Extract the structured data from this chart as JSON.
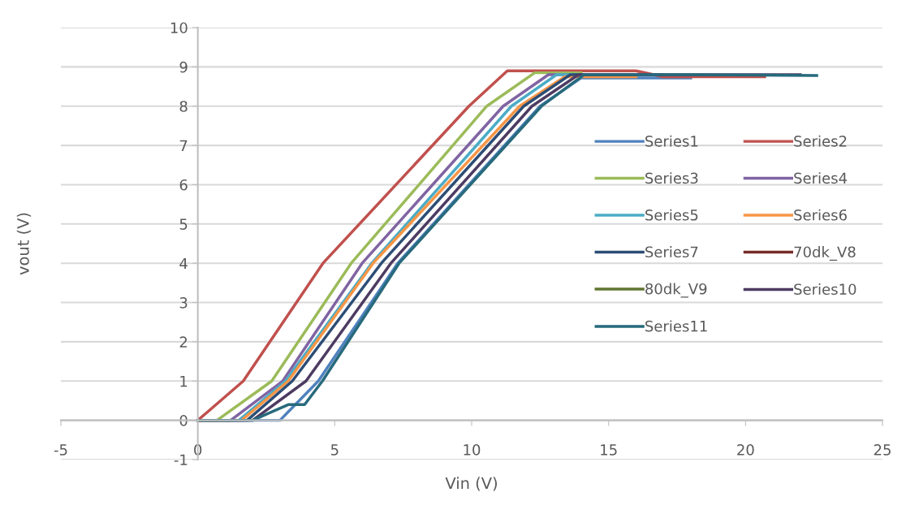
{
  "chart_data": {
    "type": "line",
    "xlabel": "Vin (V)",
    "ylabel": "vout (V)",
    "xlim": [
      -5,
      25
    ],
    "xticks": [
      -5,
      0,
      5,
      10,
      15,
      20,
      25
    ],
    "ylim": [
      -1,
      10
    ],
    "yticks": [
      -1,
      0,
      1,
      2,
      3,
      4,
      5,
      6,
      7,
      8,
      9,
      10
    ],
    "grid": "y",
    "legend": "right",
    "marker": "none",
    "line_style": "solid",
    "series": [
      {
        "name": "Series1",
        "color": "#4f81bd",
        "x": [
          0,
          3.0,
          4.4,
          7.3,
          12.5,
          14.0,
          16,
          18
        ],
        "values": [
          0,
          0,
          1,
          4,
          8,
          8.72,
          8.72,
          8.72
        ]
      },
      {
        "name": "Series2",
        "color": "#c0504d",
        "x": [
          0,
          1.66,
          4.57,
          9.9,
          11.3,
          16,
          17,
          20.7
        ],
        "values": [
          0,
          1,
          4,
          8,
          8.9,
          8.9,
          8.75,
          8.75
        ]
      },
      {
        "name": "Series3",
        "color": "#9bbb59",
        "x": [
          0,
          0.7,
          2.7,
          5.6,
          10.55,
          12.3,
          14
        ],
        "values": [
          0,
          0,
          1,
          4,
          8,
          8.85,
          8.85
        ]
      },
      {
        "name": "Series4",
        "color": "#8064a2",
        "x": [
          0,
          1.2,
          3.1,
          6.0,
          11.15,
          12.8,
          15
        ],
        "values": [
          0,
          0,
          1,
          4,
          8,
          8.8,
          8.8
        ]
      },
      {
        "name": "Series5",
        "color": "#4bacc6",
        "x": [
          0,
          1.5,
          3.2,
          6.35,
          11.45,
          13.1,
          15.5
        ],
        "values": [
          0,
          0,
          1,
          4,
          8,
          8.8,
          8.8
        ]
      },
      {
        "name": "Series6",
        "color": "#f79646",
        "x": [
          0,
          1.6,
          3.3,
          6.4,
          11.75,
          13.4,
          16
        ],
        "values": [
          0,
          0,
          1,
          4,
          8,
          8.75,
          8.75
        ]
      },
      {
        "name": "Series7",
        "color": "#2c4d75",
        "x": [
          0,
          1.8,
          3.45,
          6.7,
          11.9,
          13.6,
          17
        ],
        "values": [
          0,
          0,
          1,
          4,
          8,
          8.8,
          8.8
        ]
      },
      {
        "name": "70dk_V8",
        "color": "#772c2a"
      },
      {
        "name": "80dk_V9",
        "color": "#5f7530"
      },
      {
        "name": "Series10",
        "color": "#4d3b62",
        "x": [
          0,
          2.0,
          3.95,
          7.05,
          12.2,
          13.9,
          18,
          22
        ],
        "values": [
          0,
          0,
          1,
          4,
          8,
          8.8,
          8.8,
          8.8
        ]
      },
      {
        "name": "Series11",
        "color": "#276a7c",
        "x": [
          0,
          2.0,
          3.3,
          3.9,
          4.55,
          7.35,
          12.55,
          14.1,
          18,
          22.6
        ],
        "values": [
          0,
          0,
          0.4,
          0.4,
          1,
          4,
          8,
          8.8,
          8.8,
          8.78
        ]
      }
    ]
  }
}
